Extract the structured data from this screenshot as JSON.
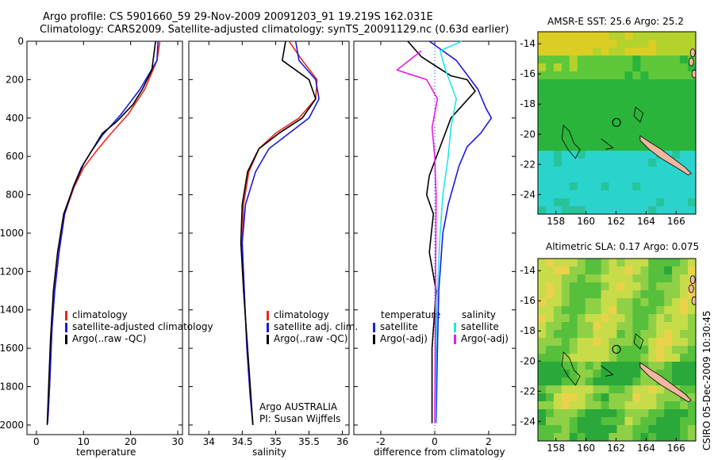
{
  "header": {
    "line1": "Argo profile: CS 5901660_59 29-Nov-2009 20091203_91 19.219S 162.031E",
    "line2": "Climatology: CARS2009. Satellite-adjusted climatology: synTS_20091129.nc (0.63d earlier)"
  },
  "colors": {
    "climatology": "#e8281e",
    "satellite": "#1a1ae0",
    "argo": "#000000",
    "salinity_satellite": "#22e8e8",
    "salinity_argo": "#e81ae8",
    "land": "#f2b7a0"
  },
  "chart_data": [
    {
      "type": "line",
      "name": "temperature-profile",
      "xlabel": "temperature",
      "ylabel": "",
      "xlim": [
        -2,
        31
      ],
      "ylim": [
        2050,
        0
      ],
      "xticks": [
        0,
        10,
        20,
        30
      ],
      "yticks": [
        0,
        200,
        400,
        600,
        800,
        1000,
        1200,
        1400,
        1600,
        1800,
        2000
      ],
      "series": [
        {
          "name": "climatology",
          "color_key": "climatology",
          "x": [
            26.2,
            25.6,
            23.0,
            19.5,
            15.5,
            12.5,
            10.0,
            8.0,
            6.0,
            4.8,
            3.9,
            3.3,
            2.8,
            2.5
          ],
          "y": [
            0,
            100,
            250,
            380,
            490,
            580,
            660,
            760,
            900,
            1100,
            1300,
            1500,
            1800,
            1950
          ]
        },
        {
          "name": "satellite-adjusted climatology",
          "color_key": "satellite",
          "x": [
            25.8,
            25.6,
            22.0,
            18.0,
            14.0,
            11.5,
            9.5,
            7.8,
            6.0,
            4.8,
            3.9,
            3.3,
            2.8,
            2.4
          ],
          "y": [
            0,
            100,
            250,
            380,
            490,
            580,
            660,
            760,
            900,
            1100,
            1300,
            1500,
            1800,
            1990
          ]
        },
        {
          "name": "Argo(..raw -QC)",
          "color_key": "argo",
          "x": [
            25.3,
            24.5,
            22.5,
            20.5,
            17.0,
            14.0,
            12.0,
            10.0,
            8.0,
            5.8,
            4.5,
            3.6,
            3.0,
            2.6,
            2.3
          ],
          "y": [
            0,
            150,
            250,
            330,
            420,
            480,
            560,
            640,
            750,
            900,
            1100,
            1300,
            1550,
            1800,
            2000
          ]
        }
      ],
      "legend": [
        "climatology",
        "satellite-adjusted climatology",
        "Argo(..raw -QC)"
      ]
    },
    {
      "type": "line",
      "name": "salinity-profile",
      "xlabel": "salinity",
      "ylabel": "",
      "xlim": [
        33.7,
        36.1
      ],
      "ylim": [
        2050,
        0
      ],
      "xticks": [
        34,
        34.5,
        35,
        35.5,
        36
      ],
      "xtick_labels": [
        "34",
        "34.5",
        "35",
        "35.5",
        "36"
      ],
      "series": [
        {
          "name": "climatology",
          "color_key": "climatology",
          "x": [
            35.2,
            35.4,
            35.62,
            35.6,
            35.35,
            35.0,
            34.75,
            34.6,
            34.52,
            34.5,
            34.53,
            34.57,
            34.62,
            34.66
          ],
          "y": [
            0,
            100,
            200,
            300,
            400,
            480,
            560,
            680,
            850,
            1050,
            1300,
            1600,
            1850,
            2000
          ]
        },
        {
          "name": "satellite adj. clim.",
          "color_key": "satellite",
          "x": [
            35.3,
            35.35,
            35.6,
            35.65,
            35.5,
            35.2,
            34.9,
            34.7,
            34.55,
            34.5,
            34.53,
            34.57,
            34.62,
            34.66
          ],
          "y": [
            0,
            100,
            200,
            300,
            400,
            480,
            560,
            680,
            850,
            1050,
            1300,
            1600,
            1850,
            2000
          ]
        },
        {
          "name": "Argo(..raw -QC)",
          "color_key": "argo",
          "x": [
            35.15,
            35.1,
            35.5,
            35.6,
            35.4,
            35.05,
            34.75,
            34.58,
            34.5,
            34.48,
            34.52,
            34.58,
            34.63,
            34.66
          ],
          "y": [
            0,
            100,
            200,
            300,
            400,
            480,
            560,
            680,
            850,
            1050,
            1300,
            1600,
            1850,
            2000
          ]
        }
      ],
      "legend": [
        "climatology",
        "satellite adj. clim.",
        "Argo(..raw -QC)"
      ],
      "annotation": [
        "Argo AUSTRALIA",
        "PI: Susan Wijffels"
      ]
    },
    {
      "type": "line",
      "name": "difference-profile",
      "xlabel": "difference from climatology",
      "ylabel": "",
      "xlim": [
        -3,
        3
      ],
      "ylim": [
        2050,
        0
      ],
      "xticks": [
        -2,
        0,
        2
      ],
      "series": [
        {
          "name": "temperature satellite",
          "color_key": "satellite",
          "x": [
            -0.2,
            0.8,
            1.6,
            1.9,
            2.1,
            1.7,
            1.2,
            0.9,
            0.7,
            0.5,
            0.3,
            0.15,
            0.1,
            0.05
          ],
          "y": [
            0,
            100,
            250,
            350,
            400,
            480,
            550,
            650,
            750,
            850,
            1000,
            1300,
            1600,
            1990
          ]
        },
        {
          "name": "temperature Argo(-adj)",
          "color_key": "argo",
          "x": [
            -1.0,
            -0.5,
            0.6,
            1.2,
            1.5,
            0.6,
            0.2,
            -0.2,
            -0.3,
            -0.05,
            -0.2,
            0.05,
            -0.1,
            -0.1
          ],
          "y": [
            0,
            80,
            180,
            200,
            260,
            400,
            550,
            700,
            800,
            900,
            1100,
            1300,
            1600,
            1990
          ]
        },
        {
          "name": "salinity satellite",
          "color_key": "salinity_satellite",
          "x": [
            1.0,
            0.2,
            0.4,
            0.8,
            0.6,
            0.5,
            0.3,
            0.2,
            0.1,
            0.05,
            0.03
          ],
          "y": [
            0,
            50,
            150,
            300,
            450,
            600,
            800,
            1000,
            1300,
            1600,
            1990
          ]
        },
        {
          "name": "salinity Argo(-adj)",
          "color_key": "salinity_argo",
          "x": [
            -0.5,
            -1.4,
            -0.3,
            0.1,
            -0.1,
            0.0,
            0.05,
            0.0
          ],
          "y": [
            50,
            150,
            200,
            300,
            450,
            600,
            800,
            1990
          ]
        }
      ],
      "legend_columns": [
        {
          "heading": "temperature",
          "entries": [
            "satellite",
            "Argo(-adj)"
          ]
        },
        {
          "heading": "salinity",
          "entries": [
            "satellite",
            "Argo(-adj)"
          ]
        }
      ]
    },
    {
      "type": "heatmap",
      "name": "sst-map",
      "title": "AMSR-E SST: 25.6 Argo: 25.2",
      "xlim": [
        156.8,
        167.3
      ],
      "ylim": [
        -25.3,
        -13.2
      ],
      "xticks": [
        158,
        160,
        162,
        164,
        166
      ],
      "yticks": [
        -14,
        -16,
        -18,
        -20,
        -22,
        -24
      ],
      "profile_location": {
        "lon": 162.031,
        "lat": -19.219
      }
    },
    {
      "type": "heatmap",
      "name": "sla-map",
      "title": "Altimetric SLA: 0.17 Argo: 0.075",
      "xlim": [
        156.8,
        167.3
      ],
      "ylim": [
        -25.3,
        -13.2
      ],
      "xticks": [
        158,
        160,
        162,
        164,
        166
      ],
      "yticks": [
        -14,
        -16,
        -18,
        -20,
        -22,
        -24
      ],
      "profile_location": {
        "lon": 162.031,
        "lat": -19.219
      }
    }
  ],
  "footer": {
    "side_label": "CSIRO 05-Dec-2009 10:30:45"
  }
}
